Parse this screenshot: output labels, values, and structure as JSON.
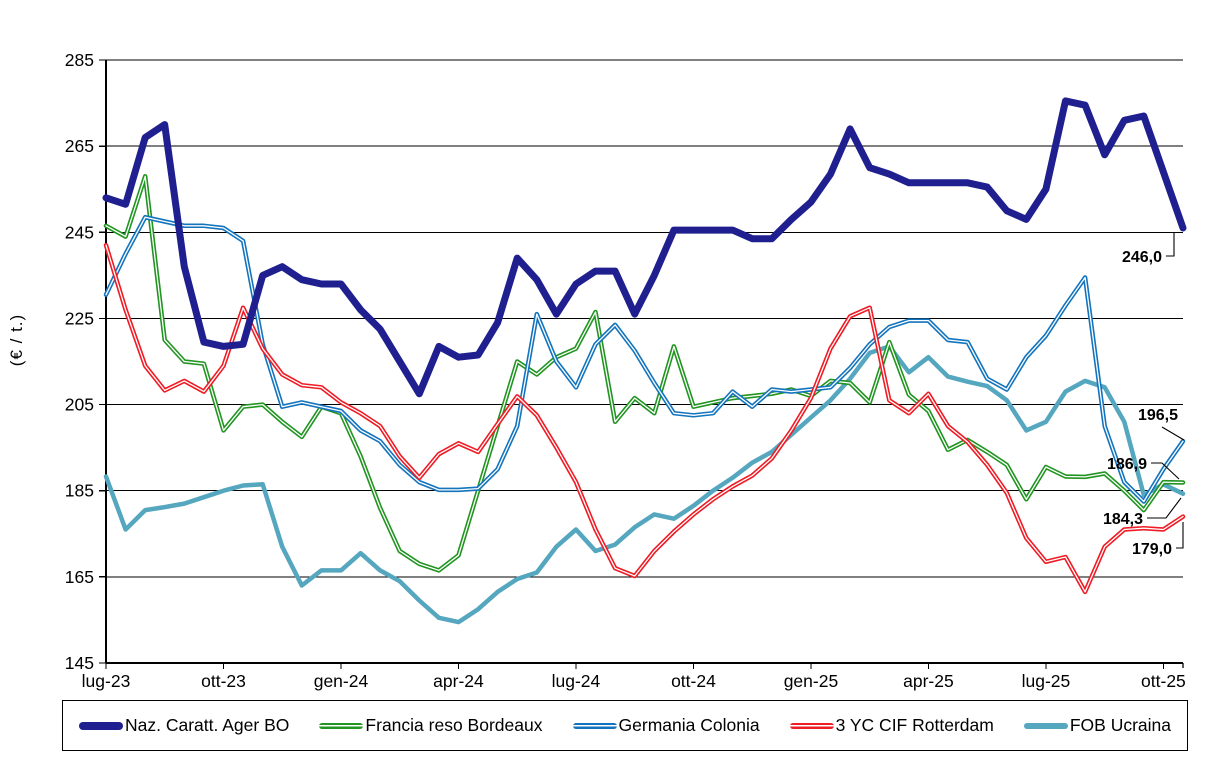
{
  "chart_data": {
    "type": "line",
    "title": "",
    "ylabel": "(€ / t.)",
    "ylim": [
      145,
      285
    ],
    "yticks": [
      145,
      165,
      185,
      205,
      225,
      245,
      265,
      285
    ],
    "grid": true,
    "legend_position": "bottom",
    "x_unit": "months since lug-23, data step = 0.5 month (weekly price series)",
    "tick_labels": [
      "lug-23",
      "ott-23",
      "gen-24",
      "apr-24",
      "lug-24",
      "ott-24",
      "gen-25",
      "apr-25",
      "lug-25",
      "ott-25"
    ],
    "tick_positions_months": [
      0,
      3,
      6,
      9,
      12,
      15,
      18,
      21,
      24,
      27
    ],
    "series": [
      {
        "name": "Naz. Caratt. Ager BO",
        "color": "#1f1f8f",
        "style": "solid",
        "line_width": 7,
        "values": [
          253,
          251.5,
          267,
          270,
          237,
          219.5,
          218.5,
          219,
          235,
          237,
          234,
          233,
          233,
          227,
          222.5,
          215,
          207.5,
          218.5,
          216,
          216.5,
          224,
          239,
          234,
          226,
          233,
          236,
          236,
          226,
          235,
          245.5,
          245.5,
          245.5,
          245.5,
          243.5,
          243.5,
          248,
          252,
          258.5,
          269,
          260,
          258.5,
          256.5,
          256.5,
          256.5,
          256.5,
          255.5,
          250,
          248,
          255,
          275.5,
          274.5,
          263,
          271,
          272,
          259,
          246
        ]
      },
      {
        "name": "Francia reso Bordeaux",
        "color": "#219421",
        "style": "double",
        "line_width": 4.5,
        "values": [
          246.5,
          244,
          258,
          220,
          215,
          214.5,
          199,
          204.5,
          205,
          201,
          197.5,
          204.5,
          203,
          193,
          181,
          171,
          168,
          166.5,
          170,
          185,
          200,
          215,
          212,
          216,
          218,
          226.5,
          201,
          206.5,
          203,
          218.5,
          204.5,
          205.5,
          206.5,
          207,
          207.5,
          208.5,
          207,
          210.5,
          210,
          205.5,
          219.5,
          207.3,
          203.5,
          194.5,
          196.8,
          194,
          191,
          183,
          190.5,
          188.3,
          188.2,
          189,
          185,
          180.5,
          187,
          186.9
        ]
      },
      {
        "name": "Germania Colonia",
        "color": "#1374bd",
        "style": "double",
        "line_width": 4.5,
        "values": [
          230.5,
          240,
          248.5,
          247.5,
          246.5,
          246.5,
          246,
          243,
          219,
          204.5,
          205.5,
          204.5,
          203.5,
          199,
          196.5,
          191,
          187,
          185.2,
          185.2,
          185.5,
          190,
          200,
          226,
          215,
          209,
          219,
          223.5,
          217.5,
          210,
          203,
          202.5,
          203,
          208,
          204.5,
          208.5,
          208,
          208.5,
          209,
          213.5,
          219,
          223,
          224.5,
          224.5,
          220,
          219.5,
          211,
          208.5,
          216,
          221,
          228,
          234.5,
          200,
          187,
          182.5,
          190,
          196.5
        ]
      },
      {
        "name": "3 YC CIF Rotterdam",
        "color": "#ee1c25",
        "style": "double",
        "line_width": 4.5,
        "values": [
          242,
          227,
          214,
          208.3,
          210.5,
          208,
          214,
          227.5,
          218,
          212,
          209.5,
          209,
          205.5,
          203,
          200,
          193,
          188,
          193.5,
          196,
          194,
          200.5,
          206.9,
          202.5,
          195,
          187,
          176,
          167,
          165.2,
          171,
          175.5,
          179.5,
          183,
          186,
          188.5,
          192.5,
          199,
          206.5,
          218,
          225.5,
          227.5,
          206,
          203,
          207.5,
          200,
          196.3,
          191,
          184.5,
          174,
          168.5,
          169.6,
          161.5,
          172,
          176,
          176.3,
          176,
          179
        ]
      },
      {
        "name": "FOB Ucraina",
        "color": "#55a6bf",
        "style": "solid",
        "line_width": 4.5,
        "values": [
          188.3,
          176,
          180.5,
          181.2,
          182,
          183.5,
          185,
          186.2,
          186.5,
          172,
          163,
          166.5,
          166.5,
          170.5,
          166.5,
          164,
          159.5,
          155.5,
          154.5,
          157.5,
          161.5,
          164.5,
          166,
          172,
          176,
          171,
          172.5,
          176.5,
          179.5,
          178.5,
          181.5,
          185,
          188,
          191.5,
          194,
          198,
          202,
          206,
          211,
          217,
          218.5,
          212.5,
          216,
          211.5,
          210.3,
          209.3,
          206,
          199,
          201,
          208,
          210.5,
          209,
          201,
          184,
          186.5,
          184.3
        ]
      }
    ],
    "end_labels": [
      {
        "text": "246,0",
        "series": "Naz. Caratt. Ager BO",
        "value": 246.0
      },
      {
        "text": "196,5",
        "series": "Germania Colonia",
        "value": 196.5
      },
      {
        "text": "186,9",
        "series": "Francia reso Bordeaux",
        "value": 186.9
      },
      {
        "text": "184,3",
        "series": "FOB Ucraina",
        "value": 184.3
      },
      {
        "text": "179,0",
        "series": "3 YC CIF Rotterdam",
        "value": 179.0
      }
    ]
  }
}
